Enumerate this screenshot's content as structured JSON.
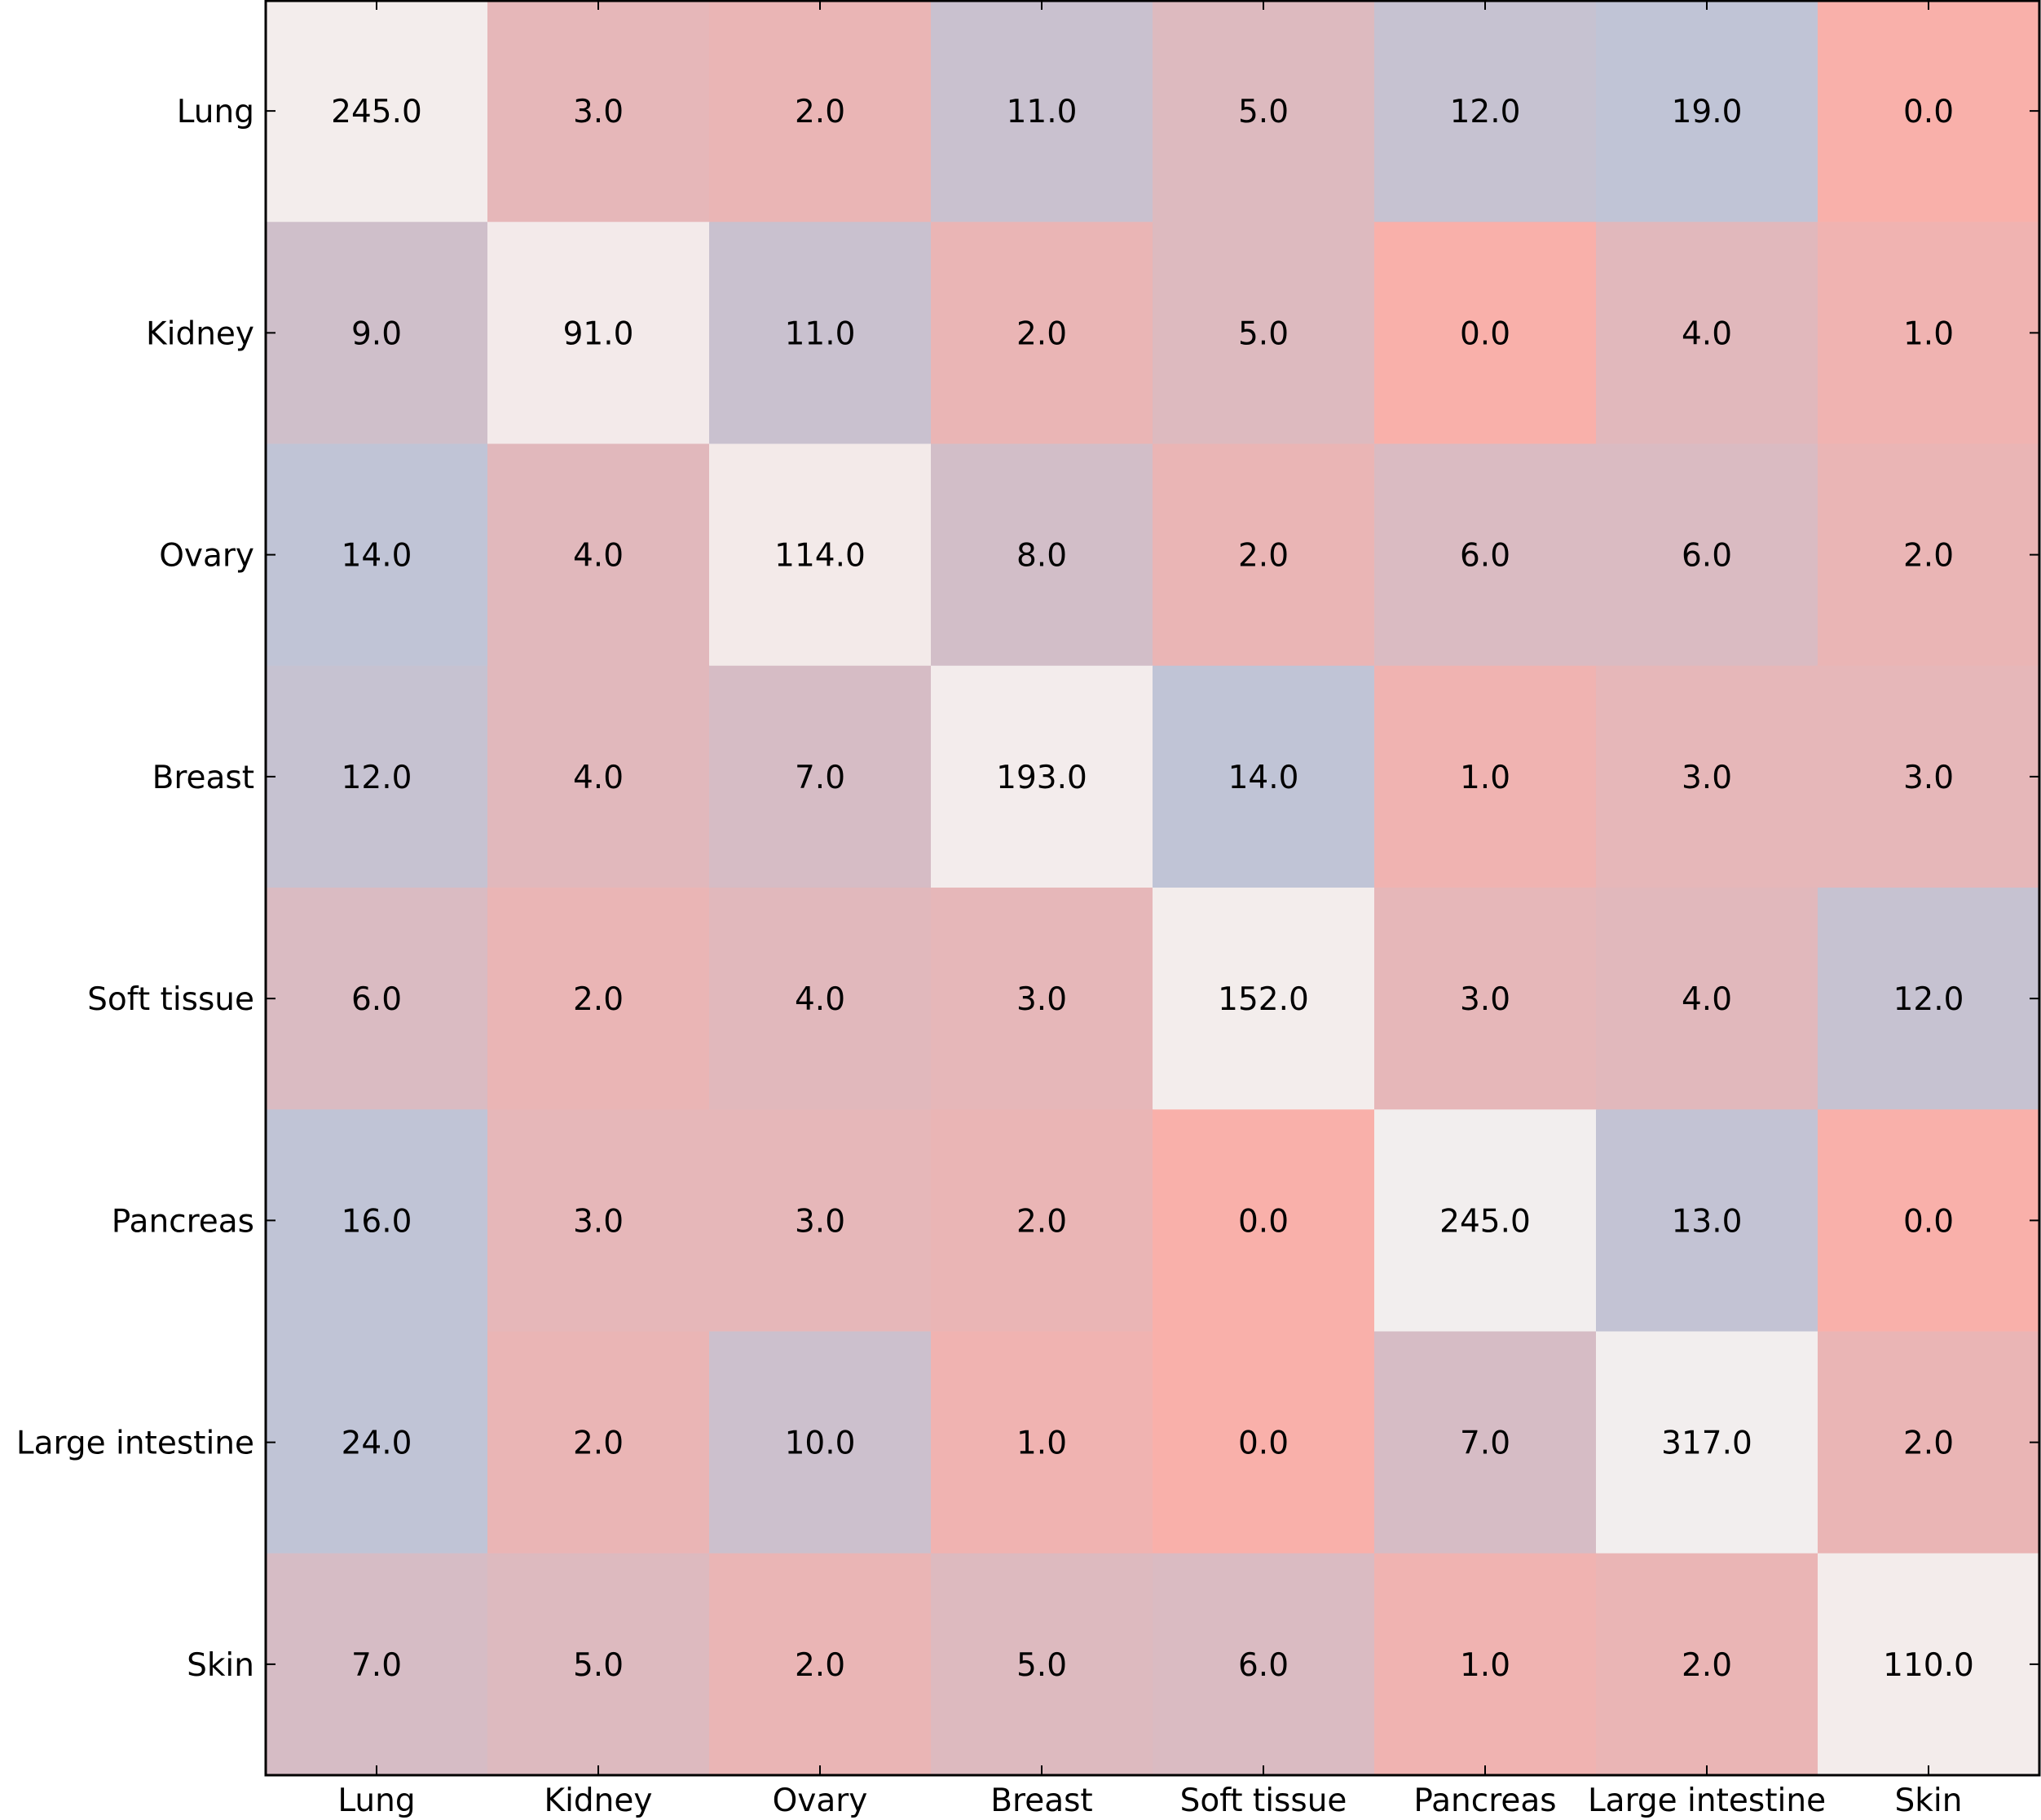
{
  "chart_data": {
    "type": "heatmap",
    "title": "",
    "xlabel": "",
    "ylabel": "",
    "row_labels": [
      "Lung",
      "Kidney",
      "Ovary",
      "Breast",
      "Soft tissue",
      "Pancreas",
      "Large intestine",
      "Skin"
    ],
    "col_labels": [
      "Lung",
      "Kidney",
      "Ovary",
      "Breast",
      "Soft tissue",
      "Pancreas",
      "Large intestine",
      "Skin"
    ],
    "values": [
      [
        245.0,
        3.0,
        2.0,
        11.0,
        5.0,
        12.0,
        19.0,
        0.0
      ],
      [
        9.0,
        91.0,
        11.0,
        2.0,
        5.0,
        0.0,
        4.0,
        1.0
      ],
      [
        14.0,
        4.0,
        114.0,
        8.0,
        2.0,
        6.0,
        6.0,
        2.0
      ],
      [
        12.0,
        4.0,
        7.0,
        193.0,
        14.0,
        1.0,
        3.0,
        3.0
      ],
      [
        6.0,
        2.0,
        4.0,
        3.0,
        152.0,
        3.0,
        4.0,
        12.0
      ],
      [
        16.0,
        3.0,
        3.0,
        2.0,
        0.0,
        245.0,
        13.0,
        0.0
      ],
      [
        24.0,
        2.0,
        10.0,
        1.0,
        0.0,
        7.0,
        317.0,
        2.0
      ],
      [
        7.0,
        5.0,
        2.0,
        5.0,
        6.0,
        1.0,
        2.0,
        110.0
      ]
    ],
    "value_format": "one-decimal",
    "colors": {
      "low": "#f9b0aa",
      "mid": "#c0c4d6",
      "high_diag": "#f2f2f2",
      "axis": "#000000",
      "text": "#000000"
    }
  },
  "cells_text": [
    [
      "245.0",
      "3.0",
      "2.0",
      "11.0",
      "5.0",
      "12.0",
      "19.0",
      "0.0"
    ],
    [
      "9.0",
      "91.0",
      "11.0",
      "2.0",
      "5.0",
      "0.0",
      "4.0",
      "1.0"
    ],
    [
      "14.0",
      "4.0",
      "114.0",
      "8.0",
      "2.0",
      "6.0",
      "6.0",
      "2.0"
    ],
    [
      "12.0",
      "4.0",
      "7.0",
      "193.0",
      "14.0",
      "1.0",
      "3.0",
      "3.0"
    ],
    [
      "6.0",
      "2.0",
      "4.0",
      "3.0",
      "152.0",
      "3.0",
      "4.0",
      "12.0"
    ],
    [
      "16.0",
      "3.0",
      "3.0",
      "2.0",
      "0.0",
      "245.0",
      "13.0",
      "0.0"
    ],
    [
      "24.0",
      "2.0",
      "10.0",
      "1.0",
      "0.0",
      "7.0",
      "317.0",
      "2.0"
    ],
    [
      "7.0",
      "5.0",
      "2.0",
      "5.0",
      "6.0",
      "1.0",
      "2.0",
      "110.0"
    ]
  ]
}
